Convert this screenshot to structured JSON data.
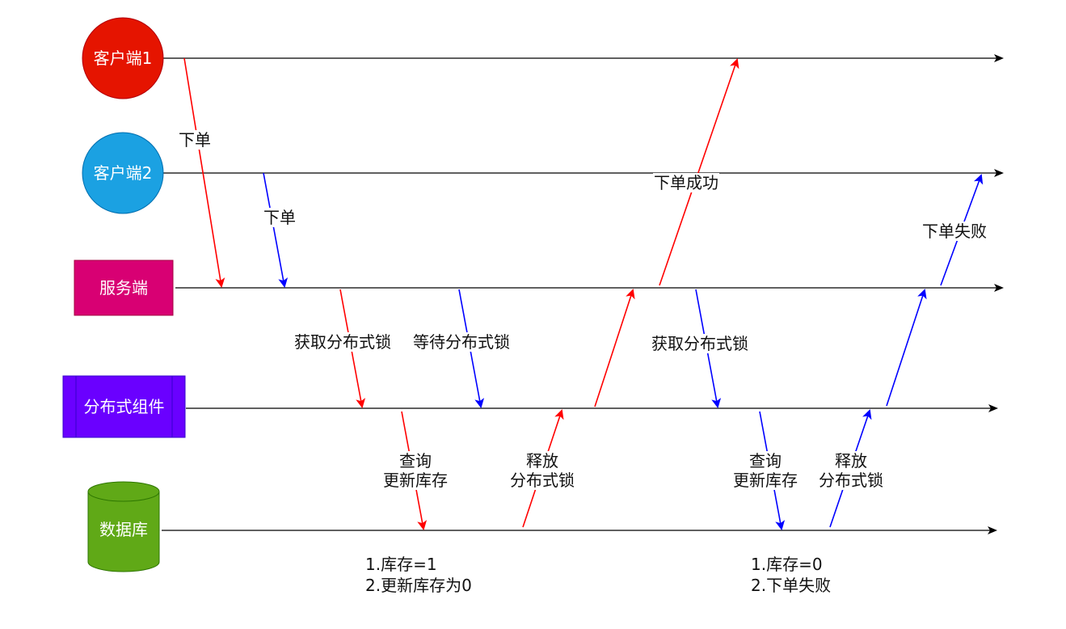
{
  "actors": {
    "client1": {
      "label": "客户端1",
      "color": "#e51400"
    },
    "client2": {
      "label": "客户端2",
      "color": "#1ba1e2"
    },
    "server": {
      "label": "服务端",
      "color": "#d80073"
    },
    "lock": {
      "label": "分布式组件",
      "color": "#6a00ff"
    },
    "db": {
      "label": "数据库",
      "color": "#60a917"
    }
  },
  "messages": {
    "c1_order": "下单",
    "c2_order": "下单",
    "acquire_lock_1": "获取分布式锁",
    "wait_lock": "等待分布式锁",
    "query_update_1": "查询\n更新库存",
    "release_lock_1": "释放\n分布式锁",
    "order_success": "下单成功",
    "acquire_lock_2": "获取分布式锁",
    "query_update_2": "查询\n更新库存",
    "release_lock_2": "释放\n分布式锁",
    "order_fail": "下单失败"
  },
  "notes": {
    "db_note_1": "1.库存=1\n2.更新库存为0",
    "db_note_2": "1.库存=0\n2.下单失败"
  },
  "colors": {
    "red_flow": "#ff0000",
    "blue_flow": "#0000ff",
    "line": "#000000"
  }
}
